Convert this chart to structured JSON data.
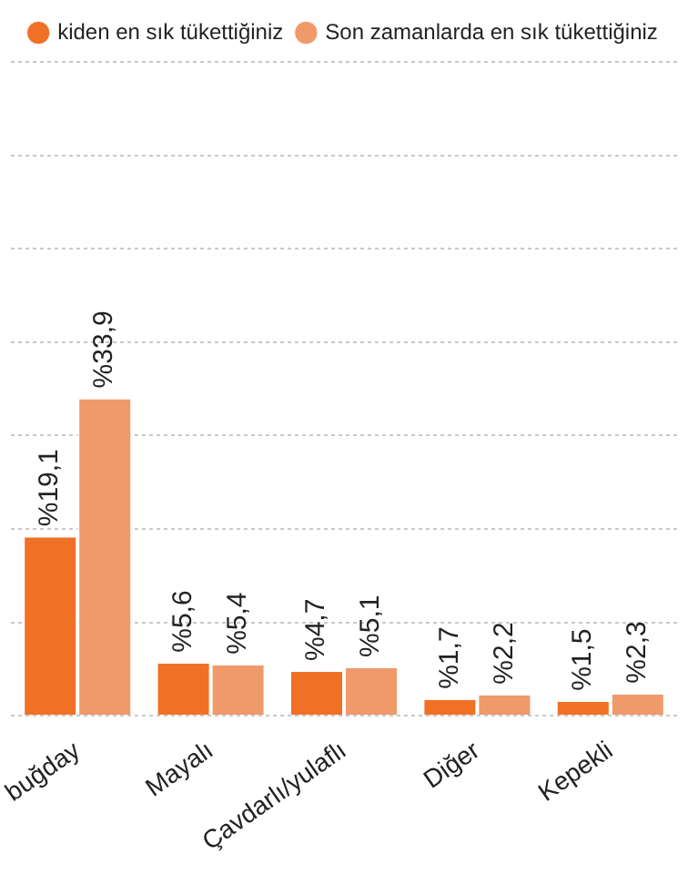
{
  "chart_data": {
    "type": "bar",
    "categories": [
      "buğday",
      "Mayalı",
      "Çavdarlı/yulaflı",
      "Diğer",
      "Kepekli"
    ],
    "series": [
      {
        "name": "kiden en sık tükettiğiniz",
        "color": "#f07025",
        "values": [
          19.1,
          5.6,
          4.7,
          1.7,
          1.5
        ],
        "value_labels": [
          "%19,1",
          "%5,6",
          "%4,7",
          "%1,7",
          "%1,5"
        ]
      },
      {
        "name": "Son zamanlarda en sık tükettiğiniz",
        "color": "#f0996a",
        "values": [
          33.9,
          5.4,
          5.1,
          2.2,
          2.3
        ],
        "value_labels": [
          "%33,9",
          "%5,4",
          "%5,1",
          "%2,2",
          "%2,3"
        ]
      }
    ],
    "ylim": [
      0,
      70
    ],
    "yticks": [
      {
        "value": 0,
        "label": null
      },
      {
        "value": 10,
        "label": null
      },
      {
        "value": 20,
        "label": null
      },
      {
        "value": 30,
        "label": null
      },
      {
        "value": 40,
        "label": null
      },
      {
        "value": 50,
        "label": null
      },
      {
        "value": 60,
        "label": null
      },
      {
        "value": 70,
        "label": null
      }
    ],
    "tick_labels": "x",
    "grid": "y",
    "legend": "top"
  }
}
